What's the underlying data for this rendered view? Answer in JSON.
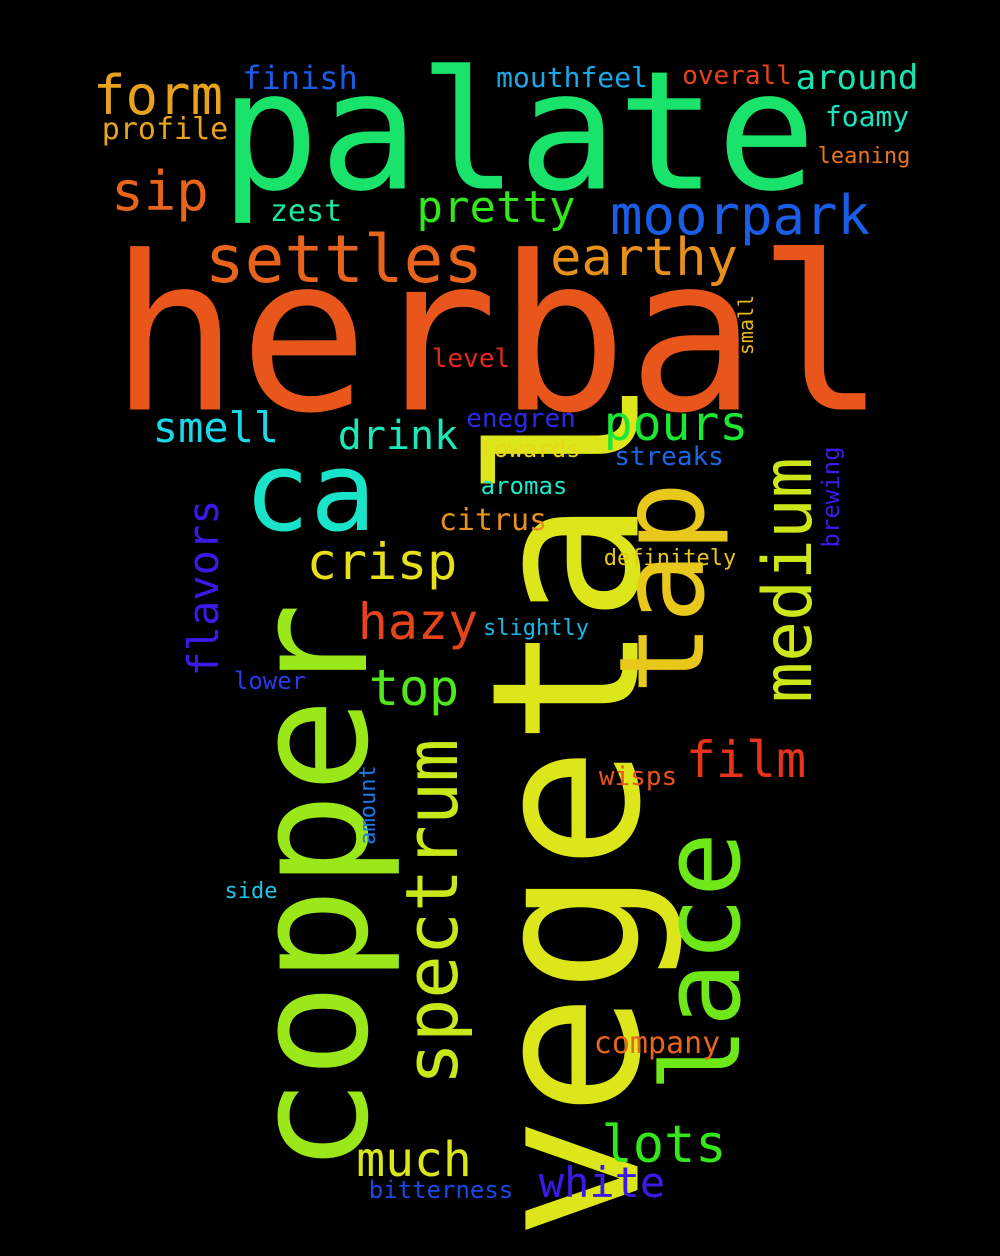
{
  "words": [
    {
      "text": "herbal",
      "color": "#e8561c"
    },
    {
      "text": "palate",
      "color": "#19e36b"
    },
    {
      "text": "vegetal",
      "color": "#dde61a"
    },
    {
      "text": "copper",
      "color": "#9ae81a"
    },
    {
      "text": "tap",
      "color": "#e8c81a"
    },
    {
      "text": "lace",
      "color": "#6fe81a"
    },
    {
      "text": "ca",
      "color": "#19e3c8"
    },
    {
      "text": "spectrum",
      "color": "#c8e81a"
    },
    {
      "text": "medium",
      "color": "#cde61a"
    },
    {
      "text": "moorpark",
      "color": "#1a5ee8"
    },
    {
      "text": "settles",
      "color": "#e8641c"
    },
    {
      "text": "form",
      "color": "#e8a21c"
    },
    {
      "text": "sip",
      "color": "#e8641c"
    },
    {
      "text": "earthy",
      "color": "#e8901c"
    },
    {
      "text": "pretty",
      "color": "#33e81a"
    },
    {
      "text": "pours",
      "color": "#1ae833"
    },
    {
      "text": "crisp",
      "color": "#e6e01a"
    },
    {
      "text": "hazy",
      "color": "#e8441c"
    },
    {
      "text": "top",
      "color": "#4fe81a"
    },
    {
      "text": "film",
      "color": "#e8321c"
    },
    {
      "text": "lots",
      "color": "#33e81a"
    },
    {
      "text": "much",
      "color": "#d8e61a"
    },
    {
      "text": "white",
      "color": "#3a1ae8"
    },
    {
      "text": "flavors",
      "color": "#3a1ae8"
    },
    {
      "text": "smell",
      "color": "#1ad8e8"
    },
    {
      "text": "drink",
      "color": "#1ae8b8"
    },
    {
      "text": "finish",
      "color": "#1a5ee8"
    },
    {
      "text": "mouthfeel",
      "color": "#1aa8e8"
    },
    {
      "text": "overall",
      "color": "#e8441c"
    },
    {
      "text": "around",
      "color": "#19e3b0"
    },
    {
      "text": "foamy",
      "color": "#19e3c0"
    },
    {
      "text": "leaning",
      "color": "#e8761c"
    },
    {
      "text": "profile",
      "color": "#e8a21c"
    },
    {
      "text": "zest",
      "color": "#1ae8a0"
    },
    {
      "text": "level",
      "color": "#e8281c"
    },
    {
      "text": "small",
      "color": "#e8b81c"
    },
    {
      "text": "enegren",
      "color": "#2a2ae8"
    },
    {
      "text": "towards",
      "color": "#e8d81c"
    },
    {
      "text": "streaks",
      "color": "#1a68e8"
    },
    {
      "text": "aromas",
      "color": "#1ae8c8"
    },
    {
      "text": "citrus",
      "color": "#e8901c"
    },
    {
      "text": "brewing",
      "color": "#3a1ae8"
    },
    {
      "text": "definitely",
      "color": "#e8c81c"
    },
    {
      "text": "slightly",
      "color": "#1ab8e8"
    },
    {
      "text": "lower",
      "color": "#2a3ae8"
    },
    {
      "text": "wisps",
      "color": "#e8541c"
    },
    {
      "text": "amount",
      "color": "#1a78e8"
    },
    {
      "text": "side",
      "color": "#1ac8e8"
    },
    {
      "text": "company",
      "color": "#e8641c"
    },
    {
      "text": "bitterness",
      "color": "#1a48e8"
    }
  ]
}
